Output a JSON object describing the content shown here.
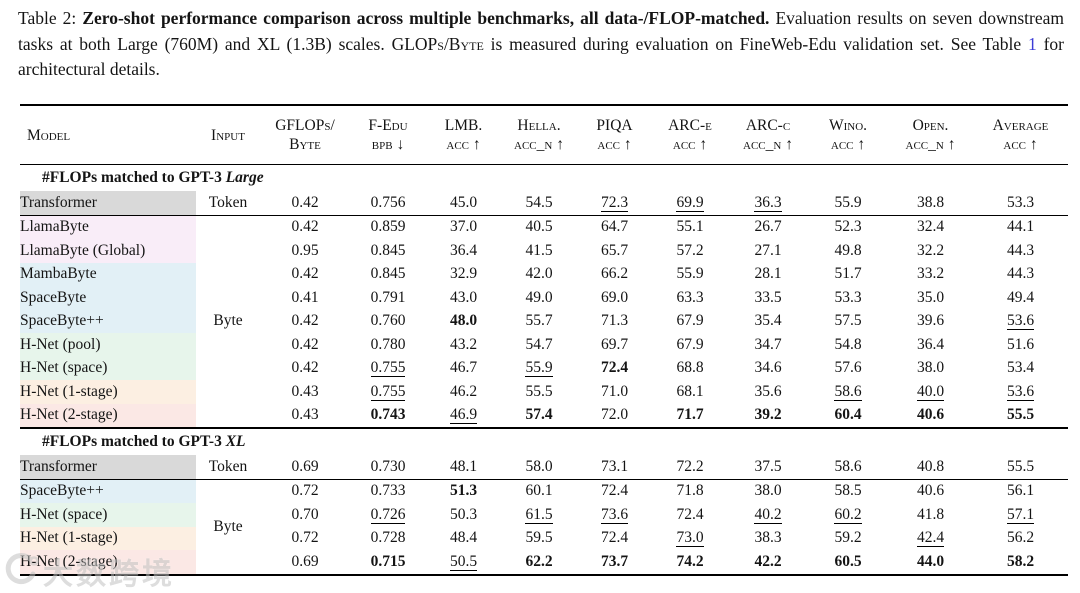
{
  "caption": {
    "segments": [
      {
        "text": "Table 2: ",
        "style": "plain"
      },
      {
        "text": "Zero-shot performance comparison across multiple benchmarks, all data-/FLOP-matched.",
        "style": "bold"
      },
      {
        "text": " Evaluation results on seven downstream tasks at both Large (760M) and XL (1.3B) scales. ",
        "style": "plain"
      },
      {
        "text": "GLOPs/Byte",
        "style": "smallcaps"
      },
      {
        "text": " is measured during evaluation on FineWeb-Edu validation set. See Table ",
        "style": "plain"
      },
      {
        "text": "1",
        "style": "link"
      },
      {
        "text": " for architectural details.",
        "style": "plain"
      }
    ]
  },
  "link_color": "#3b3bd6",
  "colors": {
    "gray": "#d9d9d9",
    "pink": "#f9edf8",
    "blue": "#e2f0f6",
    "green": "#e7f5eb",
    "peach": "#fcefe2",
    "red": "#fbe8e5"
  },
  "table": {
    "columns": [
      {
        "key": "model",
        "line1": "Model",
        "line2": ""
      },
      {
        "key": "input",
        "line1": "Input",
        "line2": ""
      },
      {
        "key": "gflops",
        "line1": "GFLOPs/",
        "line2": "Byte"
      },
      {
        "key": "fedu",
        "line1": "F-Edu",
        "line2": "bpb ↓"
      },
      {
        "key": "lmb",
        "line1": "LMB.",
        "line2": "acc ↑"
      },
      {
        "key": "hella",
        "line1": "Hella.",
        "line2": "acc_n ↑"
      },
      {
        "key": "piqa",
        "line1": "PIQA",
        "line2": "acc ↑"
      },
      {
        "key": "arce",
        "line1": "ARC-e",
        "line2": "acc ↑"
      },
      {
        "key": "arcc",
        "line1": "ARC-c",
        "line2": "acc_n ↑"
      },
      {
        "key": "wino",
        "line1": "Wino.",
        "line2": "acc ↑"
      },
      {
        "key": "open",
        "line1": "Open.",
        "line2": "acc_n ↑"
      },
      {
        "key": "avg",
        "line1": "Average",
        "line2": "acc ↑"
      }
    ],
    "sections": [
      {
        "header": {
          "prefix": "#FLOPs matched to GPT-3 ",
          "emph": "Large"
        },
        "rows": [
          {
            "model": "Transformer",
            "tone": "gray",
            "input": "Token",
            "input_span": 1,
            "rule_below": true,
            "cells": [
              {
                "v": "0.42"
              },
              {
                "v": "0.756"
              },
              {
                "v": "45.0"
              },
              {
                "v": "54.5"
              },
              {
                "v": "72.3",
                "u": true
              },
              {
                "v": "69.9",
                "u": true
              },
              {
                "v": "36.3",
                "u": true
              },
              {
                "v": "55.9"
              },
              {
                "v": "38.8"
              },
              {
                "v": "53.3"
              }
            ]
          },
          {
            "model": "LlamaByte",
            "tone": "pink",
            "input": "Byte",
            "input_span": 9,
            "cells": [
              {
                "v": "0.42"
              },
              {
                "v": "0.859"
              },
              {
                "v": "37.0"
              },
              {
                "v": "40.5"
              },
              {
                "v": "64.7"
              },
              {
                "v": "55.1"
              },
              {
                "v": "26.7"
              },
              {
                "v": "52.3"
              },
              {
                "v": "32.4"
              },
              {
                "v": "44.1"
              }
            ]
          },
          {
            "model": "LlamaByte (Global)",
            "tone": "pink",
            "cells": [
              {
                "v": "0.95"
              },
              {
                "v": "0.845"
              },
              {
                "v": "36.4"
              },
              {
                "v": "41.5"
              },
              {
                "v": "65.7"
              },
              {
                "v": "57.2"
              },
              {
                "v": "27.1"
              },
              {
                "v": "49.8"
              },
              {
                "v": "32.2"
              },
              {
                "v": "44.3"
              }
            ]
          },
          {
            "model": "MambaByte",
            "tone": "blue",
            "cells": [
              {
                "v": "0.42"
              },
              {
                "v": "0.845"
              },
              {
                "v": "32.9"
              },
              {
                "v": "42.0"
              },
              {
                "v": "66.2"
              },
              {
                "v": "55.9"
              },
              {
                "v": "28.1"
              },
              {
                "v": "51.7"
              },
              {
                "v": "33.2"
              },
              {
                "v": "44.3"
              }
            ]
          },
          {
            "model": "SpaceByte",
            "tone": "blue",
            "cells": [
              {
                "v": "0.41"
              },
              {
                "v": "0.791"
              },
              {
                "v": "43.0"
              },
              {
                "v": "49.0"
              },
              {
                "v": "69.0"
              },
              {
                "v": "63.3"
              },
              {
                "v": "33.5"
              },
              {
                "v": "53.3"
              },
              {
                "v": "35.0"
              },
              {
                "v": "49.4"
              }
            ]
          },
          {
            "model": "SpaceByte++",
            "tone": "blue",
            "cells": [
              {
                "v": "0.42"
              },
              {
                "v": "0.760"
              },
              {
                "v": "48.0",
                "b": true
              },
              {
                "v": "55.7"
              },
              {
                "v": "71.3"
              },
              {
                "v": "67.9"
              },
              {
                "v": "35.4"
              },
              {
                "v": "57.5"
              },
              {
                "v": "39.6"
              },
              {
                "v": "53.6",
                "u": true
              }
            ]
          },
          {
            "model": "H-Net (pool)",
            "tone": "green",
            "cells": [
              {
                "v": "0.42"
              },
              {
                "v": "0.780"
              },
              {
                "v": "43.2"
              },
              {
                "v": "54.7"
              },
              {
                "v": "69.7"
              },
              {
                "v": "67.9"
              },
              {
                "v": "34.7"
              },
              {
                "v": "54.8"
              },
              {
                "v": "36.4"
              },
              {
                "v": "51.6"
              }
            ]
          },
          {
            "model": "H-Net (space)",
            "tone": "green",
            "cells": [
              {
                "v": "0.42"
              },
              {
                "v": "0.755",
                "u": true
              },
              {
                "v": "46.7"
              },
              {
                "v": "55.9",
                "u": true
              },
              {
                "v": "72.4",
                "b": true
              },
              {
                "v": "68.8"
              },
              {
                "v": "34.6"
              },
              {
                "v": "57.6"
              },
              {
                "v": "38.0"
              },
              {
                "v": "53.4"
              }
            ]
          },
          {
            "model": "H-Net (1-stage)",
            "tone": "peach",
            "cells": [
              {
                "v": "0.43"
              },
              {
                "v": "0.755",
                "u": true
              },
              {
                "v": "46.2"
              },
              {
                "v": "55.5"
              },
              {
                "v": "71.0"
              },
              {
                "v": "68.1"
              },
              {
                "v": "35.6"
              },
              {
                "v": "58.6",
                "u": true
              },
              {
                "v": "40.0",
                "u": true
              },
              {
                "v": "53.6",
                "u": true
              }
            ]
          },
          {
            "model": "H-Net (2-stage)",
            "tone": "red",
            "cells": [
              {
                "v": "0.43"
              },
              {
                "v": "0.743",
                "b": true
              },
              {
                "v": "46.9",
                "u": true
              },
              {
                "v": "57.4",
                "b": true
              },
              {
                "v": "72.0"
              },
              {
                "v": "71.7",
                "b": true
              },
              {
                "v": "39.2",
                "b": true
              },
              {
                "v": "60.4",
                "b": true
              },
              {
                "v": "40.6",
                "b": true
              },
              {
                "v": "55.5",
                "b": true
              }
            ]
          }
        ]
      },
      {
        "header": {
          "prefix": "#FLOPs matched to GPT-3 ",
          "emph": "XL"
        },
        "rows": [
          {
            "model": "Transformer",
            "tone": "gray",
            "input": "Token",
            "input_span": 1,
            "rule_below": true,
            "cells": [
              {
                "v": "0.69"
              },
              {
                "v": "0.730"
              },
              {
                "v": "48.1"
              },
              {
                "v": "58.0"
              },
              {
                "v": "73.1"
              },
              {
                "v": "72.2"
              },
              {
                "v": "37.5"
              },
              {
                "v": "58.6"
              },
              {
                "v": "40.8"
              },
              {
                "v": "55.5"
              }
            ]
          },
          {
            "model": "SpaceByte++",
            "tone": "blue",
            "input": "Byte",
            "input_span": 4,
            "cells": [
              {
                "v": "0.72"
              },
              {
                "v": "0.733"
              },
              {
                "v": "51.3",
                "b": true
              },
              {
                "v": "60.1"
              },
              {
                "v": "72.4"
              },
              {
                "v": "71.8"
              },
              {
                "v": "38.0"
              },
              {
                "v": "58.5"
              },
              {
                "v": "40.6"
              },
              {
                "v": "56.1"
              }
            ]
          },
          {
            "model": "H-Net (space)",
            "tone": "green",
            "cells": [
              {
                "v": "0.70"
              },
              {
                "v": "0.726",
                "u": true
              },
              {
                "v": "50.3"
              },
              {
                "v": "61.5",
                "u": true
              },
              {
                "v": "73.6",
                "u": true
              },
              {
                "v": "72.4"
              },
              {
                "v": "40.2",
                "u": true
              },
              {
                "v": "60.2",
                "u": true
              },
              {
                "v": "41.8"
              },
              {
                "v": "57.1",
                "u": true
              }
            ]
          },
          {
            "model": "H-Net (1-stage)",
            "tone": "peach",
            "cells": [
              {
                "v": "0.72"
              },
              {
                "v": "0.728"
              },
              {
                "v": "48.4"
              },
              {
                "v": "59.5"
              },
              {
                "v": "72.4"
              },
              {
                "v": "73.0",
                "u": true
              },
              {
                "v": "38.3"
              },
              {
                "v": "59.2"
              },
              {
                "v": "42.4",
                "u": true
              },
              {
                "v": "56.2"
              }
            ]
          },
          {
            "model": "H-Net (2-stage)",
            "tone": "red",
            "cells": [
              {
                "v": "0.69"
              },
              {
                "v": "0.715",
                "b": true
              },
              {
                "v": "50.5",
                "u": true
              },
              {
                "v": "62.2",
                "b": true
              },
              {
                "v": "73.7",
                "b": true
              },
              {
                "v": "74.2",
                "b": true
              },
              {
                "v": "42.2",
                "b": true
              },
              {
                "v": "60.5",
                "b": true
              },
              {
                "v": "44.0",
                "b": true
              },
              {
                "v": "58.2",
                "b": true
              }
            ]
          }
        ]
      }
    ]
  },
  "watermark": {
    "text": "大数跨境"
  }
}
